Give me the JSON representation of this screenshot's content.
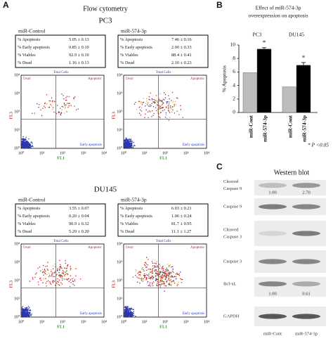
{
  "panel_a": {
    "letter": "A",
    "title": "Flow cytometry",
    "blocks": [
      {
        "cell_line": "PC3",
        "samples": [
          {
            "name": "miR-Control",
            "rows": [
              [
                "% Apoptosis",
                "5.05 ± 0.13"
              ],
              [
                "% Early apoptosis",
                "0.85 ± 0.10"
              ],
              [
                "% Viables",
                "92.9 ± 0.10"
              ],
              [
                "% Dead",
                "1.16 ± 0.13"
              ]
            ]
          },
          {
            "name": "miR-574-3p",
            "rows": [
              [
                "% Apoptosis",
                "7.46 ± 0.16"
              ],
              [
                "% Early apoptosis",
                "2.00 ± 0.33"
              ],
              [
                "% Viables",
                "88.4 ± 0.41"
              ],
              [
                "% Dead",
                "2.10 ± 0.23"
              ]
            ]
          }
        ]
      },
      {
        "cell_line": "DU145",
        "samples": [
          {
            "name": "miR-Control",
            "rows": [
              [
                "% Apoptosis",
                "3.55 ± 0.07"
              ],
              [
                "% Early apoptosis",
                "0.20 ± 0.04"
              ],
              [
                "% Viables",
                "90.9 ± 0.32"
              ],
              [
                "% Dead",
                "5.29 ± 0.20"
              ]
            ]
          },
          {
            "name": "miR-574-3p",
            "rows": [
              [
                "% Apoptosis",
                "6.03 ± 0.21"
              ],
              [
                "% Early apoptosis",
                "1.06 ± 0.24"
              ],
              [
                "% Viables",
                "81.7 ± 0.95"
              ],
              [
                "% Dead",
                "11.1 ± 1.27"
              ]
            ]
          }
        ]
      }
    ],
    "plot_labels": {
      "dead": "Dead",
      "total": "Total Cells",
      "apoptotic": "Apoptotic",
      "early": "Early apoptosis",
      "x_axis": "FL1",
      "y_axis": "FL3",
      "ticks": [
        "10⁰",
        "10¹",
        "10²",
        "10³",
        "10⁴"
      ]
    }
  },
  "chart_data": {
    "type": "bar",
    "letter": "B",
    "title": [
      "Effect of miR-574-3p",
      "overexpression on apoptosis"
    ],
    "y_label": "% Apoptosis",
    "categories": [
      "PC3",
      "DU145"
    ],
    "series": [
      {
        "name": "miR-Cont",
        "color": "#bdbdbd",
        "values": [
          5.9,
          3.8
        ]
      },
      {
        "name": "miR-574-3p",
        "color": "#000000",
        "values": [
          9.4,
          7.0
        ],
        "errors": [
          0.2,
          0.4
        ],
        "significance": [
          "*",
          "*"
        ]
      }
    ],
    "ylim": [
      0,
      10
    ],
    "yticks": [
      0,
      2,
      4,
      6,
      8,
      10
    ],
    "footnote": "* P <0.05"
  },
  "panel_c": {
    "letter": "C",
    "title": "Western blot",
    "rows": [
      {
        "label": [
          "Cleaved",
          "Caspase 9"
        ],
        "quant": [
          "1.00",
          "2.70"
        ]
      },
      {
        "label": [
          "Caspase 9"
        ]
      },
      {
        "label": [
          "Cleaved",
          "Caspase 3"
        ]
      },
      {
        "label": [
          "Caspase 3"
        ]
      },
      {
        "label": [
          "Bcl-xL"
        ],
        "quant": [
          "1.00",
          "0.61"
        ]
      },
      {
        "label": [
          "GAPDH"
        ]
      }
    ],
    "lanes": [
      "miR-Cont",
      "miR-574-3p"
    ]
  }
}
